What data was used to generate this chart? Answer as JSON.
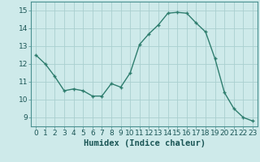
{
  "x": [
    0,
    1,
    2,
    3,
    4,
    5,
    6,
    7,
    8,
    9,
    10,
    11,
    12,
    13,
    14,
    15,
    16,
    17,
    18,
    19,
    20,
    21,
    22,
    23
  ],
  "y": [
    12.5,
    12.0,
    11.3,
    10.5,
    10.6,
    10.5,
    10.2,
    10.2,
    10.9,
    10.7,
    11.5,
    13.1,
    13.7,
    14.2,
    14.85,
    14.9,
    14.85,
    14.3,
    13.8,
    12.3,
    10.4,
    9.5,
    9.0,
    8.8
  ],
  "line_color": "#2e7d6e",
  "marker": "+",
  "marker_size": 3,
  "marker_linewidth": 1.0,
  "bg_color": "#ceeaea",
  "grid_color": "#aacfcf",
  "xlabel": "Humidex (Indice chaleur)",
  "xlim": [
    -0.5,
    23.5
  ],
  "ylim": [
    8.5,
    15.5
  ],
  "yticks": [
    9,
    10,
    11,
    12,
    13,
    14,
    15
  ],
  "xticks": [
    0,
    1,
    2,
    3,
    4,
    5,
    6,
    7,
    8,
    9,
    10,
    11,
    12,
    13,
    14,
    15,
    16,
    17,
    18,
    19,
    20,
    21,
    22,
    23
  ],
  "line_width": 1.0,
  "tick_label_fontsize": 6.5,
  "xlabel_fontsize": 7.5,
  "xlabel_fontweight": "bold"
}
